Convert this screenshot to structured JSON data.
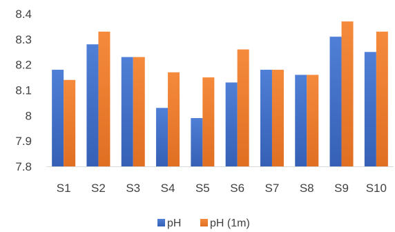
{
  "chart_data": {
    "type": "bar",
    "categories": [
      "S1",
      "S2",
      "S3",
      "S4",
      "S5",
      "S6",
      "S7",
      "S8",
      "S9",
      "S10"
    ],
    "series": [
      {
        "name": "pH",
        "values": [
          8.18,
          8.28,
          8.23,
          8.03,
          7.99,
          8.13,
          8.18,
          8.16,
          8.31,
          8.25
        ],
        "color": "#4472C4"
      },
      {
        "name": "pH (1m)",
        "values": [
          8.14,
          8.33,
          8.23,
          8.17,
          8.15,
          8.26,
          8.18,
          8.16,
          8.37,
          8.33
        ],
        "color": "#ED7D31"
      }
    ],
    "ylim": [
      7.8,
      8.4
    ],
    "yticks": [
      "7.8",
      "7.9",
      "8",
      "8.1",
      "8.2",
      "8.3",
      "8.4"
    ],
    "grid": false,
    "legend_position": "bottom",
    "title": "",
    "xlabel": "",
    "ylabel": ""
  }
}
